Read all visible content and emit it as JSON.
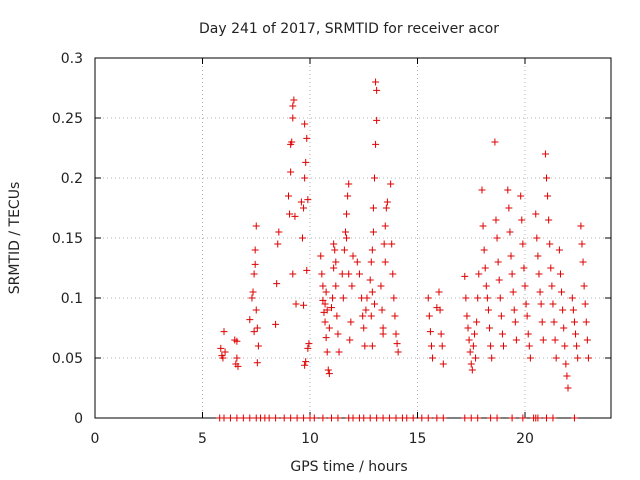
{
  "chart_data": {
    "type": "scatter",
    "title": "Day 241 of 2017, SRMTID for receiver acor",
    "xlabel": "GPS time / hours",
    "ylabel": "SRMTID / TECUs",
    "xlim": [
      0,
      24
    ],
    "ylim": [
      0,
      0.3
    ],
    "grid": true,
    "marker": "+",
    "marker_color": "#dd0000",
    "x_ticks": [
      0,
      5,
      10,
      15,
      20
    ],
    "y_ticks": [
      0,
      0.05,
      0.1,
      0.15,
      0.2,
      0.25,
      0.3
    ],
    "x_tick_labels": [
      "0",
      "5",
      "10",
      "15",
      "20"
    ],
    "y_tick_labels": [
      "0",
      "0.05",
      "0.1",
      "0.15",
      "0.2",
      "0.25",
      "0.3"
    ],
    "series": [
      {
        "name": "SRMTID",
        "points": [
          [
            5.85,
            0.058
          ],
          [
            5.9,
            0.052
          ],
          [
            5.95,
            0.05
          ],
          [
            6.0,
            0.072
          ],
          [
            6.05,
            0.055
          ],
          [
            6.5,
            0.065
          ],
          [
            6.6,
            0.064
          ],
          [
            6.55,
            0.045
          ],
          [
            6.65,
            0.043
          ],
          [
            6.6,
            0.05
          ],
          [
            7.2,
            0.082
          ],
          [
            7.3,
            0.1
          ],
          [
            7.35,
            0.105
          ],
          [
            7.4,
            0.12
          ],
          [
            7.45,
            0.14
          ],
          [
            7.5,
            0.16
          ],
          [
            7.45,
            0.128
          ],
          [
            7.5,
            0.09
          ],
          [
            7.55,
            0.075
          ],
          [
            7.4,
            0.072
          ],
          [
            7.6,
            0.06
          ],
          [
            7.55,
            0.046
          ],
          [
            8.4,
            0.078
          ],
          [
            8.45,
            0.112
          ],
          [
            8.5,
            0.145
          ],
          [
            8.55,
            0.155
          ],
          [
            9.0,
            0.185
          ],
          [
            9.05,
            0.17
          ],
          [
            9.1,
            0.205
          ],
          [
            9.15,
            0.23
          ],
          [
            9.2,
            0.25
          ],
          [
            9.25,
            0.265
          ],
          [
            9.2,
            0.26
          ],
          [
            9.1,
            0.228
          ],
          [
            9.3,
            0.168
          ],
          [
            9.2,
            0.12
          ],
          [
            9.35,
            0.095
          ],
          [
            9.6,
            0.18
          ],
          [
            9.65,
            0.15
          ],
          [
            9.7,
            0.175
          ],
          [
            9.75,
            0.2
          ],
          [
            9.8,
            0.213
          ],
          [
            9.85,
            0.233
          ],
          [
            9.75,
            0.245
          ],
          [
            9.9,
            0.182
          ],
          [
            9.85,
            0.123
          ],
          [
            9.7,
            0.094
          ],
          [
            9.8,
            0.047
          ],
          [
            9.75,
            0.044
          ],
          [
            9.9,
            0.058
          ],
          [
            9.95,
            0.062
          ],
          [
            10.5,
            0.135
          ],
          [
            10.55,
            0.12
          ],
          [
            10.6,
            0.098
          ],
          [
            10.65,
            0.088
          ],
          [
            10.7,
            0.08
          ],
          [
            10.75,
            0.067
          ],
          [
            10.8,
            0.055
          ],
          [
            10.85,
            0.04
          ],
          [
            10.9,
            0.037
          ],
          [
            10.6,
            0.11
          ],
          [
            10.7,
            0.095
          ],
          [
            10.75,
            0.105
          ],
          [
            10.8,
            0.09
          ],
          [
            10.9,
            0.075
          ],
          [
            11.0,
            0.092
          ],
          [
            11.05,
            0.1
          ],
          [
            11.1,
            0.125
          ],
          [
            11.15,
            0.14
          ],
          [
            11.2,
            0.11
          ],
          [
            11.25,
            0.085
          ],
          [
            11.3,
            0.07
          ],
          [
            11.35,
            0.055
          ],
          [
            11.1,
            0.145
          ],
          [
            11.2,
            0.13
          ],
          [
            11.5,
            0.12
          ],
          [
            11.55,
            0.1
          ],
          [
            11.6,
            0.14
          ],
          [
            11.65,
            0.155
          ],
          [
            11.7,
            0.17
          ],
          [
            11.75,
            0.185
          ],
          [
            11.8,
            0.195
          ],
          [
            11.7,
            0.15
          ],
          [
            11.8,
            0.12
          ],
          [
            11.9,
            0.08
          ],
          [
            11.85,
            0.065
          ],
          [
            11.95,
            0.11
          ],
          [
            12.0,
            0.135
          ],
          [
            12.2,
            0.13
          ],
          [
            12.3,
            0.12
          ],
          [
            12.4,
            0.1
          ],
          [
            12.45,
            0.085
          ],
          [
            12.5,
            0.075
          ],
          [
            12.55,
            0.06
          ],
          [
            12.6,
            0.09
          ],
          [
            12.65,
            0.1
          ],
          [
            12.8,
            0.115
          ],
          [
            12.85,
            0.13
          ],
          [
            12.9,
            0.14
          ],
          [
            12.95,
            0.175
          ],
          [
            13.0,
            0.2
          ],
          [
            13.05,
            0.228
          ],
          [
            13.1,
            0.248
          ],
          [
            13.1,
            0.273
          ],
          [
            13.05,
            0.28
          ],
          [
            12.95,
            0.155
          ],
          [
            12.9,
            0.105
          ],
          [
            12.85,
            0.085
          ],
          [
            12.9,
            0.06
          ],
          [
            13.0,
            0.095
          ],
          [
            13.3,
            0.11
          ],
          [
            13.35,
            0.09
          ],
          [
            13.4,
            0.075
          ],
          [
            13.45,
            0.145
          ],
          [
            13.5,
            0.16
          ],
          [
            13.55,
            0.175
          ],
          [
            13.6,
            0.18
          ],
          [
            13.5,
            0.13
          ],
          [
            13.4,
            0.07
          ],
          [
            13.75,
            0.195
          ],
          [
            13.8,
            0.145
          ],
          [
            13.85,
            0.12
          ],
          [
            13.9,
            0.1
          ],
          [
            13.95,
            0.085
          ],
          [
            14.0,
            0.07
          ],
          [
            14.05,
            0.062
          ],
          [
            14.1,
            0.055
          ],
          [
            15.5,
            0.1
          ],
          [
            15.55,
            0.085
          ],
          [
            15.6,
            0.072
          ],
          [
            15.65,
            0.06
          ],
          [
            15.7,
            0.05
          ],
          [
            15.9,
            0.092
          ],
          [
            16.0,
            0.105
          ],
          [
            16.05,
            0.09
          ],
          [
            16.1,
            0.07
          ],
          [
            16.15,
            0.06
          ],
          [
            16.2,
            0.045
          ],
          [
            17.2,
            0.118
          ],
          [
            17.25,
            0.1
          ],
          [
            17.3,
            0.085
          ],
          [
            17.35,
            0.075
          ],
          [
            17.4,
            0.065
          ],
          [
            17.45,
            0.055
          ],
          [
            17.5,
            0.045
          ],
          [
            17.55,
            0.04
          ],
          [
            17.6,
            0.06
          ],
          [
            17.65,
            0.07
          ],
          [
            17.7,
            0.05
          ],
          [
            17.75,
            0.08
          ],
          [
            17.8,
            0.1
          ],
          [
            17.85,
            0.12
          ],
          [
            18.0,
            0.19
          ],
          [
            18.05,
            0.16
          ],
          [
            18.1,
            0.14
          ],
          [
            18.15,
            0.125
          ],
          [
            18.2,
            0.11
          ],
          [
            18.25,
            0.1
          ],
          [
            18.3,
            0.09
          ],
          [
            18.35,
            0.075
          ],
          [
            18.4,
            0.06
          ],
          [
            18.45,
            0.05
          ],
          [
            18.6,
            0.23
          ],
          [
            18.65,
            0.165
          ],
          [
            18.7,
            0.15
          ],
          [
            18.75,
            0.13
          ],
          [
            18.8,
            0.115
          ],
          [
            18.85,
            0.1
          ],
          [
            18.9,
            0.085
          ],
          [
            18.95,
            0.07
          ],
          [
            19.0,
            0.06
          ],
          [
            19.2,
            0.19
          ],
          [
            19.25,
            0.175
          ],
          [
            19.3,
            0.155
          ],
          [
            19.35,
            0.135
          ],
          [
            19.4,
            0.12
          ],
          [
            19.45,
            0.105
          ],
          [
            19.5,
            0.09
          ],
          [
            19.55,
            0.08
          ],
          [
            19.6,
            0.065
          ],
          [
            19.8,
            0.185
          ],
          [
            19.85,
            0.165
          ],
          [
            19.9,
            0.145
          ],
          [
            19.95,
            0.125
          ],
          [
            20.0,
            0.11
          ],
          [
            20.05,
            0.095
          ],
          [
            20.1,
            0.085
          ],
          [
            20.15,
            0.07
          ],
          [
            20.2,
            0.06
          ],
          [
            20.25,
            0.05
          ],
          [
            20.5,
            0.17
          ],
          [
            20.55,
            0.15
          ],
          [
            20.6,
            0.135
          ],
          [
            20.65,
            0.12
          ],
          [
            20.7,
            0.105
          ],
          [
            20.75,
            0.095
          ],
          [
            20.8,
            0.08
          ],
          [
            20.85,
            0.065
          ],
          [
            20.95,
            0.22
          ],
          [
            21.0,
            0.2
          ],
          [
            21.05,
            0.185
          ],
          [
            21.1,
            0.165
          ],
          [
            21.15,
            0.145
          ],
          [
            21.2,
            0.125
          ],
          [
            21.25,
            0.11
          ],
          [
            21.3,
            0.095
          ],
          [
            21.35,
            0.08
          ],
          [
            21.4,
            0.065
          ],
          [
            21.45,
            0.05
          ],
          [
            21.6,
            0.14
          ],
          [
            21.65,
            0.12
          ],
          [
            21.7,
            0.105
          ],
          [
            21.75,
            0.09
          ],
          [
            21.8,
            0.075
          ],
          [
            21.85,
            0.06
          ],
          [
            21.9,
            0.045
          ],
          [
            21.95,
            0.035
          ],
          [
            22.0,
            0.025
          ],
          [
            22.2,
            0.1
          ],
          [
            22.25,
            0.09
          ],
          [
            22.3,
            0.08
          ],
          [
            22.35,
            0.07
          ],
          [
            22.4,
            0.06
          ],
          [
            22.45,
            0.05
          ],
          [
            22.6,
            0.16
          ],
          [
            22.65,
            0.145
          ],
          [
            22.7,
            0.13
          ],
          [
            22.75,
            0.11
          ],
          [
            22.8,
            0.095
          ],
          [
            22.85,
            0.08
          ],
          [
            22.9,
            0.065
          ],
          [
            22.95,
            0.05
          ]
        ],
        "zeros": [
          5.8,
          6.0,
          6.3,
          6.6,
          6.9,
          7.2,
          7.5,
          7.7,
          7.9,
          8.1,
          8.4,
          8.8,
          9.1,
          9.4,
          9.7,
          10.0,
          10.2,
          10.6,
          11.0,
          11.3,
          11.8,
          12.0,
          12.3,
          12.5,
          12.8,
          13.1,
          13.4,
          13.7,
          14.0,
          14.3,
          14.5,
          14.8,
          15.2,
          15.5,
          15.9,
          16.2,
          17.2,
          17.5,
          17.8,
          18.4,
          18.7,
          19.4,
          19.9,
          20.4,
          20.5,
          20.6,
          21.0,
          21.3,
          22.3
        ]
      }
    ]
  }
}
